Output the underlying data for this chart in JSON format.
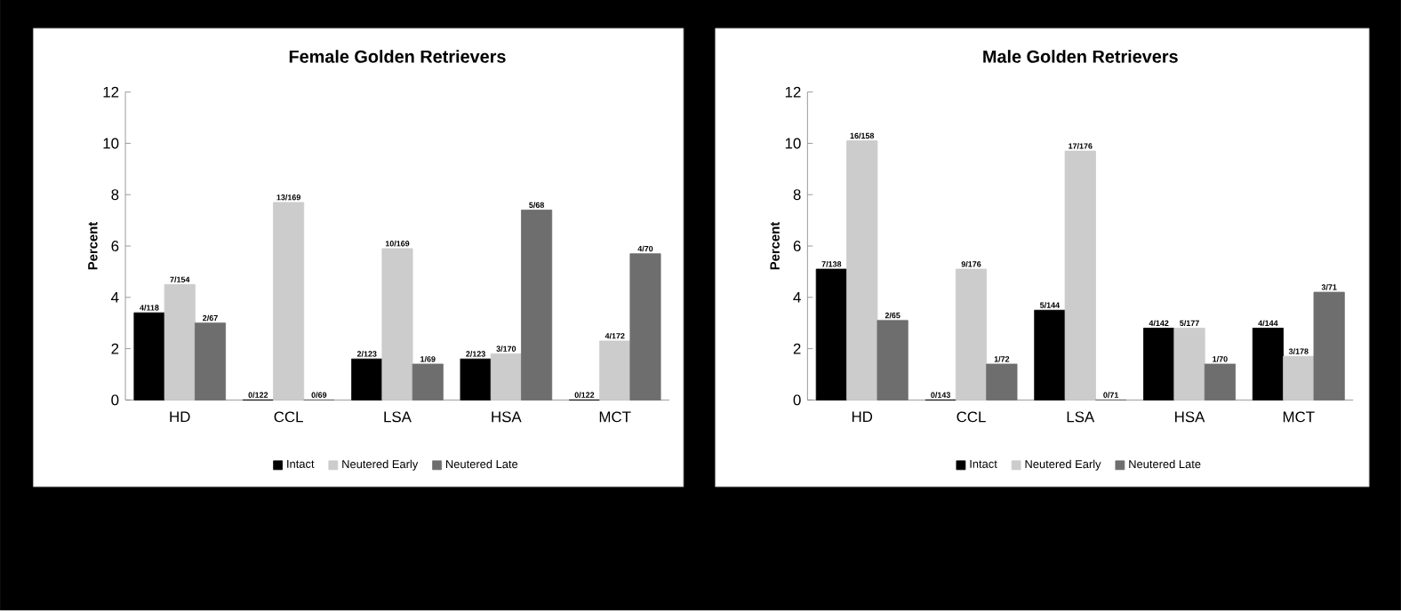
{
  "chart_data": [
    {
      "type": "bar",
      "title": "Female Golden Retrievers",
      "ylabel": "Percent",
      "categories": [
        "HD",
        "CCL",
        "LSA",
        "HSA",
        "MCT"
      ],
      "ylim": [
        0,
        12
      ],
      "yticks": [
        0,
        2,
        4,
        6,
        8,
        10,
        12
      ],
      "legend": "bottom",
      "series": [
        {
          "name": "Intact",
          "color": "#000000",
          "values": [
            3.4,
            0,
            1.6,
            1.6,
            0
          ],
          "value_labels": [
            "4/118",
            "0/122",
            "2/123",
            "2/123",
            "0/122"
          ]
        },
        {
          "name": "Neutered Early",
          "color": "#cccccc",
          "values": [
            4.5,
            7.7,
            5.9,
            1.8,
            2.3
          ],
          "value_labels": [
            "7/154",
            "13/169",
            "10/169",
            "3/170",
            "4/172"
          ]
        },
        {
          "name": "Neutered Late",
          "color": "#6e6e6e",
          "values": [
            3.0,
            0,
            1.4,
            7.4,
            5.7
          ],
          "value_labels": [
            "2/67",
            "0/69",
            "1/69",
            "5/68",
            "4/70"
          ]
        }
      ]
    },
    {
      "type": "bar",
      "title": "Male Golden Retrievers",
      "ylabel": "Percent",
      "categories": [
        "HD",
        "CCL",
        "LSA",
        "HSA",
        "MCT"
      ],
      "ylim": [
        0,
        12
      ],
      "yticks": [
        0,
        2,
        4,
        6,
        8,
        10,
        12
      ],
      "legend": "bottom",
      "series": [
        {
          "name": "Intact",
          "color": "#000000",
          "values": [
            5.1,
            0,
            3.5,
            2.8,
            2.8
          ],
          "value_labels": [
            "7/138",
            "0/143",
            "5/144",
            "4/142",
            "4/144"
          ]
        },
        {
          "name": "Neutered Early",
          "color": "#cccccc",
          "values": [
            10.1,
            5.1,
            9.7,
            2.8,
            1.7
          ],
          "value_labels": [
            "16/158",
            "9/176",
            "17/176",
            "5/177",
            "3/178"
          ]
        },
        {
          "name": "Neutered Late",
          "color": "#6e6e6e",
          "values": [
            3.1,
            1.4,
            0,
            1.4,
            4.2
          ],
          "value_labels": [
            "2/65",
            "1/72",
            "0/71",
            "1/70",
            "3/71"
          ]
        }
      ]
    }
  ]
}
